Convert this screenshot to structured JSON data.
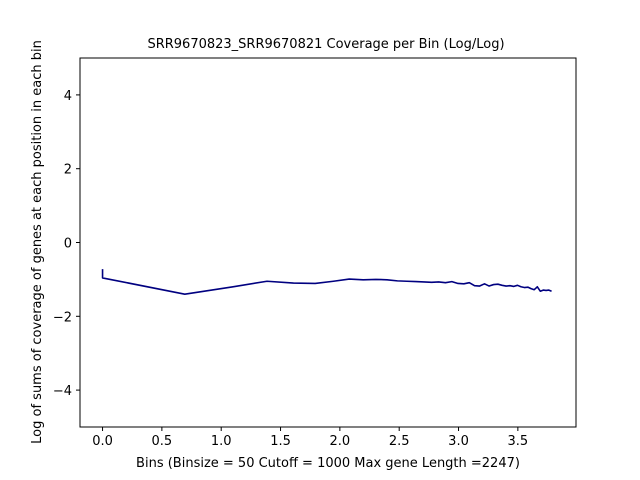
{
  "chart_data": {
    "type": "line",
    "title": "SRR9670823_SRR9670821 Coverage per Bin (Log/Log)",
    "xlabel": "Bins  (Binsize = 50 Cutoff = 1000 Max gene Length =2247)",
    "ylabel": "Log of sums of coverage of genes at each position in each bin",
    "xlim": [
      -0.19,
      3.99
    ],
    "ylim": [
      -5,
      5
    ],
    "x_ticks": [
      0.0,
      0.5,
      1.0,
      1.5,
      2.0,
      2.5,
      3.0,
      3.5
    ],
    "x_tick_labels": [
      "0.0",
      "0.5",
      "1.0",
      "1.5",
      "2.0",
      "2.5",
      "3.0",
      "3.5"
    ],
    "y_ticks": [
      -4,
      -2,
      0,
      2,
      4
    ],
    "y_tick_labels": [
      "−4",
      "−2",
      "0",
      "2",
      "4"
    ],
    "grid": false,
    "legend": "none",
    "color": "#000080",
    "series": [
      {
        "x": [
          0.0,
          0.0,
          0.693,
          1.099,
          1.386,
          1.609,
          1.792,
          1.946,
          2.079,
          2.197,
          2.303,
          2.398,
          2.485,
          2.565,
          2.639,
          2.708,
          2.773,
          2.833,
          2.89,
          2.944,
          2.996,
          3.045,
          3.091,
          3.135,
          3.178,
          3.219,
          3.258,
          3.296,
          3.332,
          3.367,
          3.401,
          3.434,
          3.466,
          3.497,
          3.526,
          3.555,
          3.584,
          3.611,
          3.638,
          3.664,
          3.689,
          3.714,
          3.738,
          3.761,
          3.784
        ],
        "y": [
          -0.72,
          -0.96,
          -1.4,
          -1.2,
          -1.05,
          -1.1,
          -1.11,
          -1.05,
          -0.99,
          -1.01,
          -1.0,
          -1.01,
          -1.04,
          -1.05,
          -1.06,
          -1.07,
          -1.08,
          -1.07,
          -1.09,
          -1.06,
          -1.11,
          -1.12,
          -1.09,
          -1.17,
          -1.18,
          -1.12,
          -1.18,
          -1.14,
          -1.13,
          -1.16,
          -1.18,
          -1.17,
          -1.19,
          -1.16,
          -1.2,
          -1.22,
          -1.21,
          -1.25,
          -1.28,
          -1.2,
          -1.32,
          -1.29,
          -1.3,
          -1.29,
          -1.32
        ]
      }
    ]
  }
}
